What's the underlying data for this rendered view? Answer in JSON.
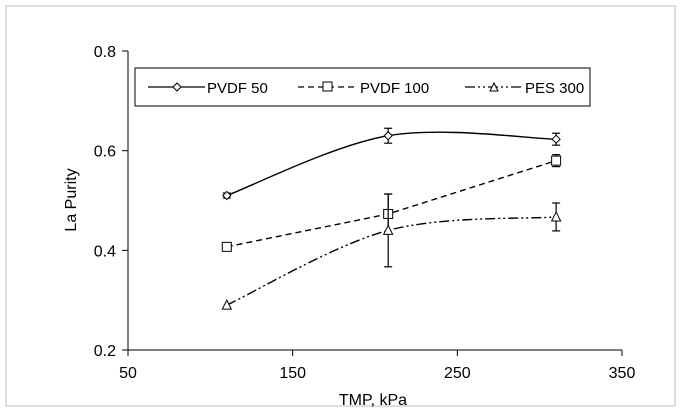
{
  "chart_data": {
    "type": "line",
    "xlabel": "TMP, kPa",
    "ylabel": "La Purity",
    "xlim": [
      50,
      350
    ],
    "ylim": [
      0.2,
      0.8
    ],
    "x_ticks": [
      "50",
      "150",
      "250",
      "350"
    ],
    "y_ticks": [
      "0.2",
      "0.4",
      "0.6",
      "0.8"
    ],
    "grid": false,
    "legend_position": "top",
    "series": [
      {
        "name": "PVDF 50",
        "marker": "diamond",
        "line_style": "solid",
        "color": "#000000",
        "x": [
          110,
          208,
          310
        ],
        "y": [
          0.51,
          0.63,
          0.623
        ],
        "error": [
          0.005,
          0.015,
          0.012
        ]
      },
      {
        "name": "PVDF 100",
        "marker": "square",
        "line_style": "dashed",
        "color": "#000000",
        "x": [
          110,
          208,
          310
        ],
        "y": [
          0.407,
          0.473,
          0.58
        ],
        "error": [
          0.005,
          0.04,
          0.012
        ]
      },
      {
        "name": "PES 300",
        "marker": "triangle",
        "line_style": "dash-dot-dot",
        "color": "#000000",
        "x": [
          110,
          208,
          310
        ],
        "y": [
          0.29,
          0.44,
          0.467
        ],
        "error": [
          0.003,
          0.073,
          0.028
        ]
      }
    ]
  }
}
